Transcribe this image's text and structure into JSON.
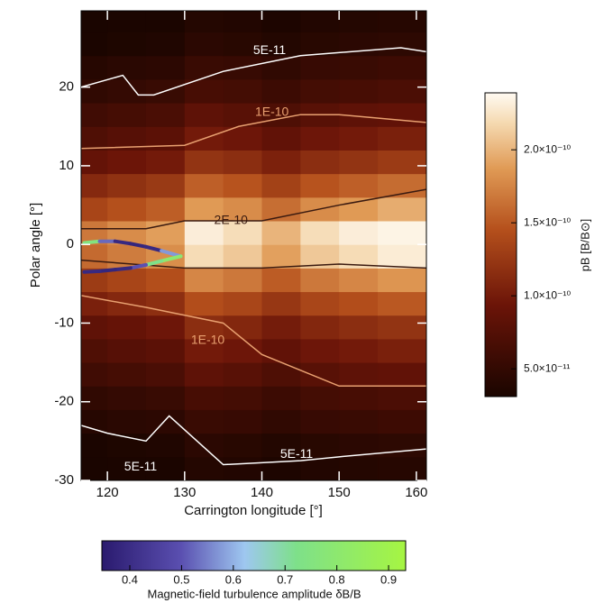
{
  "chart_data": {
    "type": "heatmap",
    "xlabel": "Carrington longitude [°]",
    "ylabel": "Polar angle [°]",
    "xlim": [
      116.6,
      161.3
    ],
    "ylim": [
      -30,
      29.7
    ],
    "xticks": [
      120,
      130,
      140,
      150,
      160
    ],
    "yticks": [
      -30,
      -20,
      -10,
      0,
      10,
      20
    ],
    "x_edges": [
      116.6,
      120,
      125,
      130,
      135,
      140,
      145,
      150,
      155,
      161.3
    ],
    "y_edges": [
      -30,
      -27,
      -24,
      -21,
      -18,
      -15,
      -12,
      -9,
      -6,
      -3,
      0,
      3,
      6,
      9,
      12,
      15,
      18,
      21,
      24,
      27,
      29.7
    ],
    "z": [
      [
        3.1e-11,
        3.2e-11,
        3.2e-11,
        3.9e-11,
        3.7e-11,
        3.3e-11,
        3.7e-11,
        3.9e-11,
        4e-11
      ],
      [
        3.2e-11,
        3.4e-11,
        3.6e-11,
        4.4e-11,
        4.2e-11,
        3.8e-11,
        4.2e-11,
        4.4e-11,
        4.6e-11
      ],
      [
        4e-11,
        4.3e-11,
        4.5e-11,
        5.5e-11,
        5.3e-11,
        4.8e-11,
        5.3e-11,
        5.5e-11,
        5.8e-11
      ],
      [
        4.8e-11,
        5.1e-11,
        5.4e-11,
        6.6e-11,
        6.3e-11,
        5.7e-11,
        6.3e-11,
        6.6e-11,
        6.9e-11
      ],
      [
        6e-11,
        6.4e-11,
        6.8e-11,
        8.3e-11,
        7.9e-11,
        7.1e-11,
        7.9e-11,
        8.3e-11,
        8.6e-11
      ],
      [
        7.2e-11,
        7.7e-11,
        8.1e-11,
        9.9e-11,
        9.5e-11,
        8.6e-11,
        9.5e-11,
        9.9e-11,
        1.04e-10
      ],
      [
        8.4e-11,
        8.9e-11,
        9.5e-11,
        1.16e-10,
        1.1e-10,
        1e-10,
        1.1e-10,
        1.16e-10,
        1.21e-10
      ],
      [
        1.04e-10,
        1.11e-10,
        1.17e-10,
        1.43e-10,
        1.37e-10,
        1.24e-10,
        1.37e-10,
        1.43e-10,
        1.5e-10
      ],
      [
        1.28e-10,
        1.36e-10,
        1.44e-10,
        1.76e-10,
        1.68e-10,
        1.52e-10,
        1.68e-10,
        1.76e-10,
        1.84e-10
      ],
      [
        1.6e-10,
        1.7e-10,
        1.8e-10,
        2.2e-10,
        2.1e-10,
        1.9e-10,
        2.1e-10,
        2.2e-10,
        2.3e-10
      ],
      [
        1.68e-10,
        1.79e-10,
        1.89e-10,
        2.31e-10,
        2.21e-10,
        2e-10,
        2.21e-10,
        2.31e-10,
        2.35e-10
      ],
      [
        1.36e-10,
        1.45e-10,
        1.53e-10,
        1.87e-10,
        1.79e-10,
        1.62e-10,
        1.79e-10,
        1.87e-10,
        1.96e-10
      ],
      [
        1.12e-10,
        1.19e-10,
        1.26e-10,
        1.54e-10,
        1.47e-10,
        1.33e-10,
        1.47e-10,
        1.54e-10,
        1.61e-10
      ],
      [
        8.8e-11,
        9.4e-11,
        9.9e-11,
        1.21e-10,
        1.16e-10,
        1.05e-10,
        1.16e-10,
        1.21e-10,
        1.27e-10
      ],
      [
        7.2e-11,
        7.7e-11,
        8.1e-11,
        9.9e-11,
        9.5e-11,
        8.6e-11,
        9.5e-11,
        9.9e-11,
        1.04e-10
      ],
      [
        6e-11,
        6.4e-11,
        6.8e-11,
        8.3e-11,
        7.9e-11,
        7.1e-11,
        7.9e-11,
        8.3e-11,
        8.6e-11
      ],
      [
        4.8e-11,
        5.1e-11,
        5.4e-11,
        6.6e-11,
        6.3e-11,
        5.7e-11,
        6.3e-11,
        6.6e-11,
        6.9e-11
      ],
      [
        4e-11,
        4.3e-11,
        4.5e-11,
        5.5e-11,
        5.3e-11,
        4.8e-11,
        5.3e-11,
        5.5e-11,
        5.8e-11
      ],
      [
        3.2e-11,
        3.4e-11,
        3.6e-11,
        4.4e-11,
        4.2e-11,
        3.8e-11,
        4.2e-11,
        4.4e-11,
        4.6e-11
      ],
      [
        3.1e-11,
        3.2e-11,
        3.2e-11,
        3.9e-11,
        3.7e-11,
        3.3e-11,
        3.7e-11,
        3.9e-11,
        4e-11
      ]
    ],
    "colorbar": {
      "label": "pB [B/B⊙]",
      "lim": [
        3.1e-11,
        2.39e-10
      ],
      "ticks": [
        {
          "value": 5e-11,
          "label": "5.0×10⁻¹¹"
        },
        {
          "value": 1e-10,
          "label": "1.0×10⁻¹⁰"
        },
        {
          "value": 1.5e-10,
          "label": "1.5×10⁻¹⁰"
        },
        {
          "value": 2e-10,
          "label": "2.0×10⁻¹⁰"
        }
      ]
    },
    "contours": [
      {
        "color": "#ffffff",
        "x": [
          116.6,
          122,
          124,
          126,
          135,
          145,
          158,
          161.3
        ],
        "y": [
          20,
          21.5,
          19,
          19,
          22,
          24,
          25,
          24.5
        ]
      },
      {
        "color": "#e8a070",
        "x": [
          116.6,
          130,
          137,
          145,
          150,
          161.3
        ],
        "y": [
          12.2,
          12.6,
          15,
          16.5,
          16.5,
          15.5
        ]
      },
      {
        "color": "#3a1a10",
        "x": [
          116.6,
          125,
          130,
          140,
          150,
          161.3
        ],
        "y": [
          2,
          2,
          3,
          3,
          5,
          7
        ]
      },
      {
        "color": "#3a1a10",
        "x": [
          116.6,
          130,
          140,
          150,
          161.3
        ],
        "y": [
          -2,
          -3,
          -3,
          -2.5,
          -3
        ]
      },
      {
        "color": "#e8a070",
        "x": [
          116.6,
          125,
          130,
          135,
          140,
          150,
          161.3
        ],
        "y": [
          -6.5,
          -8,
          -9,
          -10,
          -14,
          -18,
          -18
        ]
      },
      {
        "color": "#ffffff",
        "x": [
          116.6,
          120,
          125,
          128,
          135,
          145,
          150,
          161.3
        ],
        "y": [
          -23,
          -24,
          -25,
          -21.8,
          -28,
          -27.5,
          -27,
          -26
        ]
      }
    ],
    "annotations": [
      {
        "text": "5E-11",
        "x": 141,
        "y": 24.6,
        "color": "#ffffff"
      },
      {
        "text": "1E-10",
        "x": 141.3,
        "y": 16.8,
        "color": "#e8a070"
      },
      {
        "text": "2E-10",
        "x": 136,
        "y": 3,
        "color": "#3a1a10"
      },
      {
        "text": "1E-10",
        "x": 133,
        "y": -12.2,
        "color": "#e8a070"
      },
      {
        "text": "5E-11",
        "x": 144.5,
        "y": -26.7,
        "color": "#ffffff"
      },
      {
        "text": "5E-11",
        "x": 124.3,
        "y": -28.3,
        "color": "#ffffff"
      }
    ],
    "track": {
      "x": [
        117,
        119,
        121,
        123,
        125,
        127,
        129.5,
        127,
        125,
        123,
        121,
        119,
        117
      ],
      "y": [
        0.2,
        0.4,
        0.4,
        0.1,
        -0.3,
        -0.8,
        -1.5,
        -2.1,
        -2.6,
        -3.0,
        -3.2,
        -3.4,
        -3.5
      ],
      "values": [
        0.85,
        0.65,
        0.4,
        0.38,
        0.38,
        0.4,
        0.75,
        0.85,
        0.6,
        0.4,
        0.38,
        0.38,
        0.4
      ]
    },
    "colorbar2": {
      "label": "Magnetic-field turbulence amplitude δB/B",
      "lim": [
        0.346,
        0.933
      ],
      "ticks": [
        0.4,
        0.5,
        0.6,
        0.7,
        0.8,
        0.9
      ]
    }
  }
}
